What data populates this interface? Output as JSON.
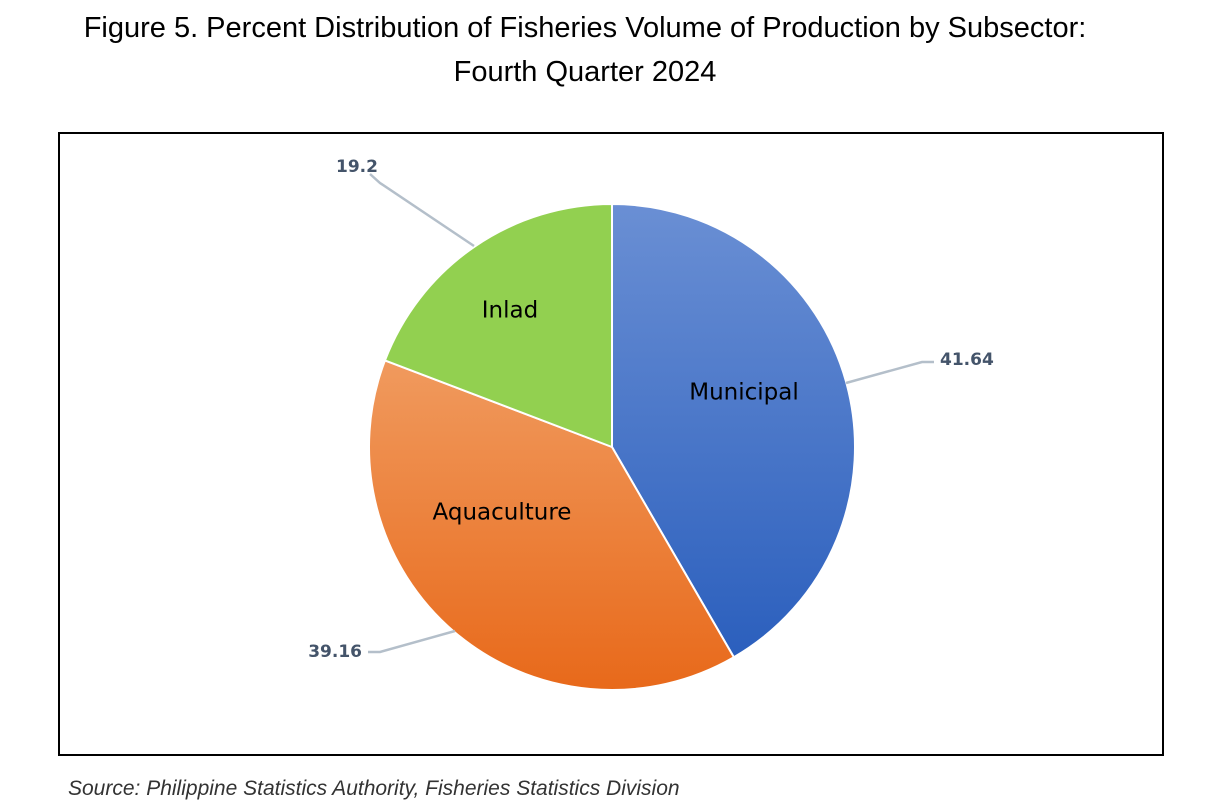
{
  "figure": {
    "title_line1": "Figure 5. Percent Distribution of Fisheries Volume of Production by Subsector:",
    "title_line2": "Fourth Quarter 2024"
  },
  "source": "Source: Philippine Statistics Authority, Fisheries Statistics Division",
  "chart_data": {
    "type": "pie",
    "categories": [
      "Municipal",
      "Aquaculture",
      "Inlad"
    ],
    "values": [
      41.64,
      39.16,
      19.2
    ],
    "value_labels": [
      "41.64",
      "39.16",
      "19.2"
    ],
    "colors": {
      "Municipal": [
        "#6a8fd4",
        "#2b5fbd"
      ],
      "Aquaculture": [
        "#f09a5e",
        "#e8691a"
      ],
      "Inlad": [
        "#92d050",
        "#92d050"
      ]
    },
    "start": "12 o'clock",
    "direction": "clockwise",
    "leader_line_color": "#b4bfca",
    "value_label_color": "#44546a",
    "legend": "none"
  }
}
